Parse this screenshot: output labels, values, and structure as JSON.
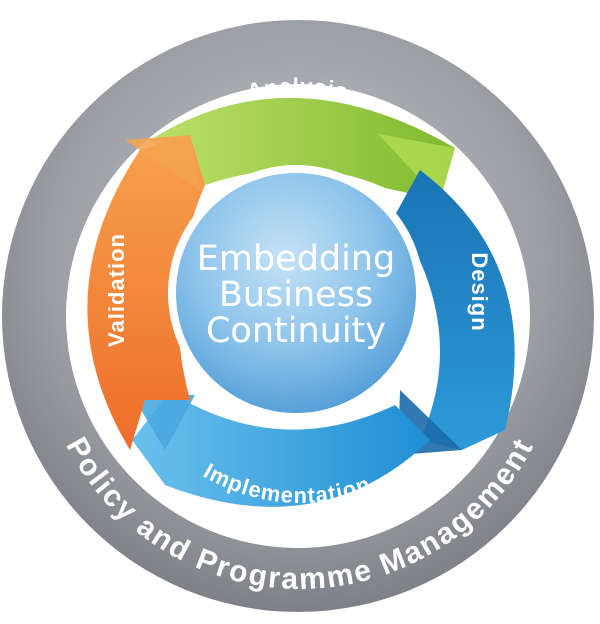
{
  "outer_ring": {
    "label": "Policy and Programme Management",
    "color": "#8c8f95"
  },
  "segments": [
    {
      "label": "Analysis",
      "color": "#95c93d"
    },
    {
      "label": "Design",
      "color": "#1f86c8"
    },
    {
      "label": "Implementation",
      "color": "#2fa6e0"
    },
    {
      "label": "Validation",
      "color": "#f08a2e"
    }
  ],
  "center": {
    "lines": [
      "Embedding",
      "Business",
      "Continuity"
    ],
    "color": "#6fb3e3"
  }
}
